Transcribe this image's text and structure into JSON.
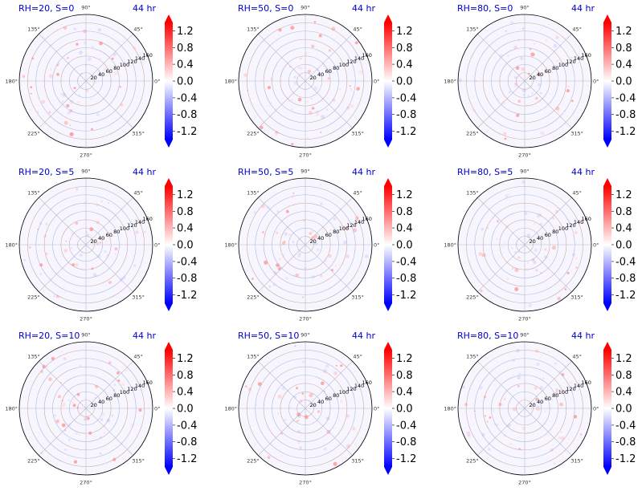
{
  "chart_data": {
    "type": "polar-heatmap-grid",
    "time_label": "44 hr",
    "panels": [
      {
        "title": "RH=20, S=0"
      },
      {
        "title": "RH=50, S=0"
      },
      {
        "title": "RH=80, S=0"
      },
      {
        "title": "RH=20, S=5"
      },
      {
        "title": "RH=50, S=5"
      },
      {
        "title": "RH=80, S=5"
      },
      {
        "title": "RH=20, S=10"
      },
      {
        "title": "RH=50, S=10"
      },
      {
        "title": "RH=80, S=10"
      }
    ],
    "angle_ticks": [
      "0°",
      "45°",
      "90°",
      "135°",
      "180°",
      "225°",
      "270°",
      "315°"
    ],
    "radial_ticks": [
      "20",
      "40",
      "60",
      "80",
      "100",
      "120",
      "140",
      "160"
    ],
    "radial_range": [
      0,
      160
    ],
    "colorbar": {
      "range": [
        -1.4,
        1.4
      ],
      "ticks": [
        "1.2",
        "0.8",
        "0.4",
        "0.0",
        "-0.4",
        "-0.8",
        "-1.2"
      ],
      "colormap": "bwr",
      "extend": "both",
      "color_high": "#ff0000",
      "color_mid": "#ffffff",
      "color_low": "#0000ff"
    }
  }
}
